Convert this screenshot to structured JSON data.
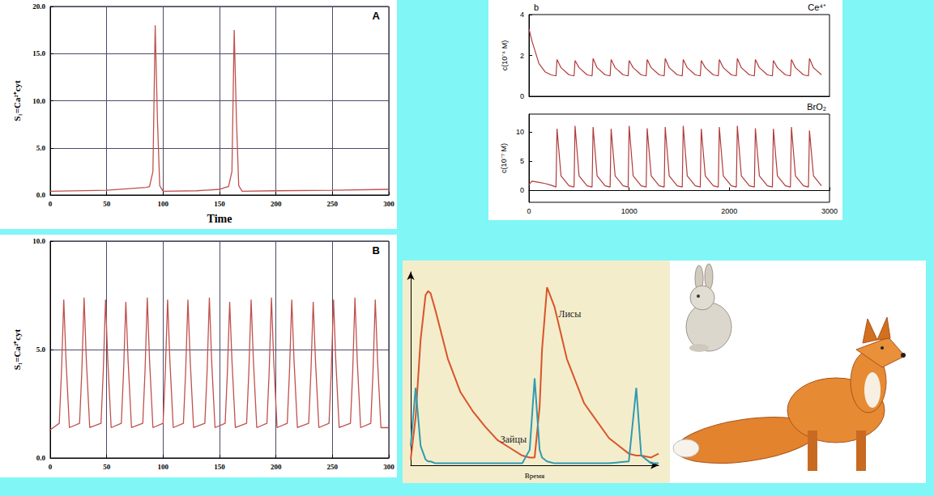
{
  "chart_data": [
    {
      "type": "line",
      "panel_label": "A",
      "xlabel": "Time",
      "ylabel": "S₁=Ca²⁺cyt",
      "color": "#c0504d",
      "x": [
        0,
        50,
        85,
        88,
        91,
        93,
        95,
        97,
        100,
        130,
        150,
        155,
        158,
        161,
        163,
        165,
        167,
        170,
        200,
        250,
        300
      ],
      "values": [
        0.4,
        0.5,
        0.8,
        0.9,
        2.5,
        18,
        8,
        1.0,
        0.4,
        0.45,
        0.6,
        0.8,
        0.9,
        2.5,
        17.5,
        8,
        1.0,
        0.4,
        0.45,
        0.5,
        0.6
      ],
      "xlim": [
        0,
        300
      ],
      "xticks": [
        0,
        50,
        100,
        150,
        200,
        250,
        300
      ],
      "ylim": [
        0,
        20
      ],
      "yticks": [
        {
          "value": 0,
          "label": "0.0"
        },
        {
          "value": 5,
          "label": "5.0"
        },
        {
          "value": 10,
          "label": "10.0"
        },
        {
          "value": 15,
          "label": "15.0"
        },
        {
          "value": 20,
          "label": "20.0"
        }
      ],
      "grid": true
    },
    {
      "type": "line",
      "panel_label": "B",
      "ylabel": "S₁=Ca²⁺cyt",
      "color": "#c0504d",
      "x": [
        0,
        8,
        10,
        12,
        14,
        17,
        26,
        28,
        30,
        32,
        35,
        45,
        47,
        49,
        51,
        54,
        63,
        65,
        67,
        69,
        72,
        82,
        84,
        86,
        88,
        91,
        100,
        102,
        104,
        106,
        109,
        118,
        120,
        122,
        124,
        127,
        137,
        139,
        141,
        143,
        146,
        155,
        157,
        159,
        161,
        164,
        174,
        176,
        178,
        180,
        183,
        192,
        194,
        196,
        198,
        201,
        210,
        212,
        214,
        216,
        219,
        229,
        231,
        233,
        235,
        238,
        247,
        249,
        251,
        253,
        256,
        266,
        268,
        270,
        272,
        275,
        284,
        286,
        288,
        290,
        293,
        300
      ],
      "values": [
        1.3,
        1.6,
        4.0,
        7.3,
        4.5,
        1.4,
        1.6,
        4.0,
        7.4,
        4.5,
        1.4,
        1.6,
        4.0,
        7.3,
        4.5,
        1.4,
        1.6,
        4.0,
        7.2,
        4.5,
        1.4,
        1.6,
        4.0,
        7.4,
        4.5,
        1.4,
        1.6,
        4.0,
        7.3,
        4.5,
        1.4,
        1.6,
        4.0,
        7.3,
        4.5,
        1.4,
        1.6,
        4.0,
        7.4,
        4.5,
        1.4,
        1.6,
        4.0,
        7.2,
        4.5,
        1.4,
        1.6,
        4.0,
        7.3,
        4.5,
        1.4,
        1.6,
        4.0,
        7.4,
        4.5,
        1.4,
        1.6,
        4.0,
        7.3,
        4.5,
        1.4,
        1.6,
        4.0,
        7.2,
        4.5,
        1.4,
        1.6,
        4.0,
        7.3,
        4.5,
        1.4,
        1.6,
        4.0,
        7.4,
        4.5,
        1.4,
        1.6,
        4.0,
        7.3,
        4.5,
        1.4,
        1.4
      ],
      "xlim": [
        0,
        300
      ],
      "xticks": [
        0,
        50,
        100,
        150,
        200,
        250,
        300
      ],
      "ylim": [
        0,
        10
      ],
      "yticks": [
        {
          "value": 0,
          "label": "0.0"
        },
        {
          "value": 5,
          "label": "5.0"
        },
        {
          "value": 10,
          "label": "10.0"
        }
      ],
      "grid": true
    },
    {
      "type": "line",
      "ylabel": "c(10⁻⁴ M)",
      "annotations": [
        "b",
        "Ce⁴⁺"
      ],
      "color": "#b03a3a",
      "tick_labels": "y",
      "x": [
        0,
        30,
        100,
        160,
        220,
        270,
        280,
        320,
        400,
        450,
        460,
        500,
        580,
        630,
        640,
        680,
        760,
        810,
        820,
        860,
        940,
        990,
        1000,
        1040,
        1120,
        1170,
        1180,
        1220,
        1300,
        1350,
        1360,
        1400,
        1480,
        1530,
        1540,
        1580,
        1660,
        1710,
        1720,
        1760,
        1840,
        1890,
        1900,
        1940,
        2020,
        2070,
        2080,
        2120,
        2200,
        2250,
        2260,
        2300,
        2380,
        2430,
        2440,
        2480,
        2560,
        2610,
        2620,
        2660,
        2740,
        2790,
        2800,
        2840,
        2920
      ],
      "values": [
        3.3,
        2.7,
        1.6,
        1.2,
        1.05,
        1.0,
        1.8,
        1.4,
        1.05,
        1.0,
        1.75,
        1.4,
        1.05,
        1.0,
        1.85,
        1.4,
        1.05,
        1.0,
        1.8,
        1.4,
        1.05,
        1.0,
        1.75,
        1.4,
        1.05,
        1.0,
        1.8,
        1.4,
        1.05,
        1.0,
        1.85,
        1.4,
        1.05,
        1.0,
        1.8,
        1.4,
        1.05,
        1.0,
        1.75,
        1.4,
        1.05,
        1.0,
        1.8,
        1.4,
        1.05,
        1.0,
        1.85,
        1.4,
        1.05,
        1.0,
        1.8,
        1.4,
        1.05,
        1.0,
        1.75,
        1.4,
        1.05,
        1.0,
        1.8,
        1.4,
        1.05,
        1.0,
        1.85,
        1.4,
        1.05
      ],
      "xlim": [
        0,
        3000
      ],
      "ylim": [
        0,
        4
      ],
      "yticks": [
        0,
        2,
        4
      ]
    },
    {
      "type": "line",
      "ylabel": "c(10⁻⁷ M)",
      "annotations": [
        "BrO₂"
      ],
      "color": "#b03a3a",
      "x": [
        0,
        30,
        100,
        160,
        220,
        270,
        280,
        320,
        400,
        450,
        460,
        500,
        580,
        630,
        640,
        680,
        760,
        810,
        820,
        860,
        940,
        990,
        1000,
        1040,
        1120,
        1170,
        1180,
        1220,
        1300,
        1350,
        1360,
        1400,
        1480,
        1530,
        1540,
        1580,
        1660,
        1710,
        1720,
        1760,
        1840,
        1890,
        1900,
        1940,
        2020,
        2070,
        2080,
        2120,
        2200,
        2250,
        2260,
        2300,
        2380,
        2430,
        2440,
        2480,
        2560,
        2610,
        2620,
        2660,
        2740,
        2790,
        2800,
        2840,
        2920
      ],
      "values": [
        1.0,
        1.6,
        1.4,
        1.2,
        0.9,
        0.6,
        10.5,
        2.5,
        0.8,
        0.6,
        11,
        2.5,
        0.8,
        0.6,
        10.8,
        2.5,
        0.8,
        0.6,
        10.5,
        2.5,
        0.8,
        0.6,
        11,
        2.5,
        0.8,
        0.6,
        10.6,
        2.5,
        0.8,
        0.6,
        10.8,
        2.5,
        0.8,
        0.6,
        11,
        2.5,
        0.8,
        0.6,
        10.5,
        2.5,
        0.8,
        0.6,
        10.8,
        2.5,
        0.8,
        0.6,
        11,
        2.5,
        0.8,
        0.6,
        10.6,
        2.5,
        0.8,
        0.6,
        10.5,
        2.5,
        0.8,
        0.6,
        10.8,
        2.5,
        0.8,
        0.6,
        10.2,
        2.5,
        0.8
      ],
      "xlim": [
        0,
        3000
      ],
      "xticks": [
        0,
        1000,
        2000,
        3000
      ],
      "ylim": [
        -2,
        13
      ],
      "yticks": [
        0,
        5,
        10
      ]
    },
    {
      "type": "line",
      "xlabel": "Время",
      "tick_labels": false,
      "x": [
        0,
        2,
        4,
        6,
        7,
        8,
        10,
        15,
        20,
        25,
        30,
        35,
        40,
        45,
        48,
        50,
        52,
        53,
        55,
        58,
        63,
        70,
        80,
        88,
        91,
        93,
        97,
        100
      ],
      "series": [
        {
          "name": "Лисы",
          "color": "#d9542a",
          "values": [
            3,
            25,
            65,
            88,
            90,
            89,
            80,
            55,
            38,
            28,
            20,
            13,
            9,
            5,
            4,
            4,
            30,
            60,
            92,
            82,
            55,
            32,
            14,
            6,
            5,
            5,
            4,
            6
          ]
        },
        {
          "name": "Зайцы",
          "color": "#2f9bb0",
          "values": [
            10,
            40,
            10,
            3,
            2,
            2,
            1,
            1,
            1,
            1,
            1,
            1,
            1,
            1,
            8,
            45,
            8,
            4,
            2,
            1,
            1,
            1,
            1,
            2,
            40,
            5,
            1,
            1
          ]
        }
      ],
      "xlim": [
        0,
        100
      ],
      "ylim": [
        0,
        100
      ]
    }
  ]
}
